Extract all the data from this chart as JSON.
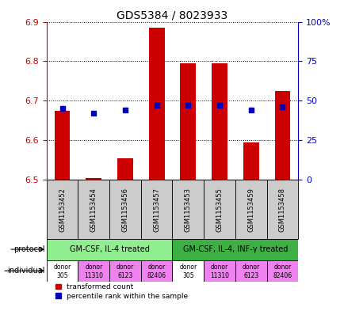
{
  "title": "GDS5384 / 8023933",
  "samples": [
    "GSM1153452",
    "GSM1153454",
    "GSM1153456",
    "GSM1153457",
    "GSM1153453",
    "GSM1153455",
    "GSM1153459",
    "GSM1153458"
  ],
  "red_values": [
    6.675,
    6.505,
    6.555,
    6.885,
    6.795,
    6.795,
    6.595,
    6.725
  ],
  "blue_pct": [
    45,
    42,
    44,
    47,
    47,
    47,
    44,
    46
  ],
  "ymin": 6.5,
  "ymax": 6.9,
  "y_ticks": [
    6.5,
    6.6,
    6.7,
    6.8,
    6.9
  ],
  "y2_ticks": [
    0,
    25,
    50,
    75,
    100
  ],
  "protocol_groups": [
    {
      "label": "GM-CSF, IL-4 treated",
      "start": 0,
      "end": 4,
      "color": "#90EE90"
    },
    {
      "label": "GM-CSF, IL-4, INF-γ treated",
      "start": 4,
      "end": 8,
      "color": "#3CB043"
    }
  ],
  "individuals": [
    {
      "label": "donor\n305",
      "color": "#FFFFFF"
    },
    {
      "label": "donor\n11310",
      "color": "#EE82EE"
    },
    {
      "label": "donor\n6123",
      "color": "#EE82EE"
    },
    {
      "label": "donor\n82406",
      "color": "#EE82EE"
    },
    {
      "label": "donor\n305",
      "color": "#FFFFFF"
    },
    {
      "label": "donor\n11310",
      "color": "#EE82EE"
    },
    {
      "label": "donor\n6123",
      "color": "#EE82EE"
    },
    {
      "label": "donor\n82406",
      "color": "#EE82EE"
    }
  ],
  "bar_color": "#CC0000",
  "dot_color": "#0000BB",
  "bg_color": "#FFFFFF",
  "axis_color_left": "#CC0000",
  "axis_color_right": "#0000BB",
  "sample_box_color": "#CCCCCC"
}
